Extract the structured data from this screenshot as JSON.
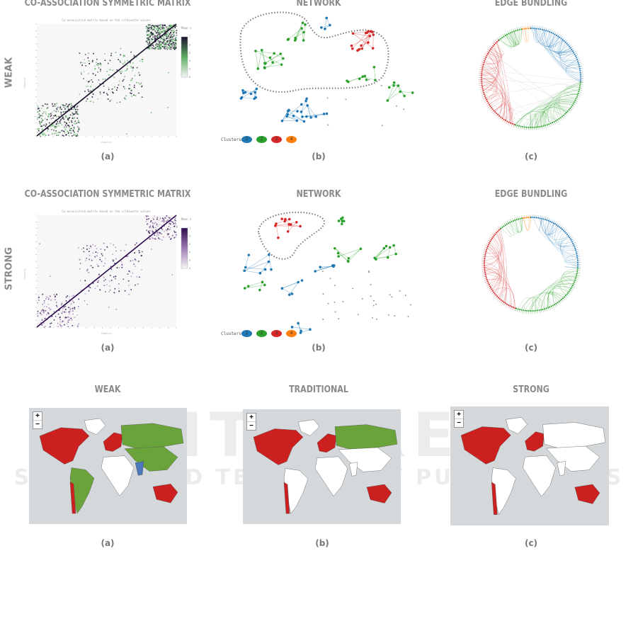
{
  "row_labels": [
    "WEAK",
    "STRONG"
  ],
  "rows": [
    {
      "titles": [
        "CO-ASSOCIATION SYMMETRIC MATRIX",
        "NETWORK",
        "EDGE BUNDLING"
      ],
      "captions": [
        "(a)",
        "(b)",
        "(c)"
      ],
      "matrix": {
        "title": "Co-association matrix based on the silhouette values",
        "xlabel": "Country",
        "ylabel": "Country",
        "colorbar_label": "Mean silhouette",
        "colorbar_ticks": [
          "0",
          "0.2",
          "0.4",
          "0.6",
          "0.8",
          "1"
        ],
        "colormap": [
          "#f7f7f7",
          "#5aae61",
          "#1b0f2e"
        ]
      },
      "network": {
        "legend_label": "Clusters",
        "clusters": [
          "1",
          "2",
          "3",
          "4"
        ]
      }
    },
    {
      "titles": [
        "CO-ASSOCIATION SYMMETRIC MATRIX",
        "NETWORK",
        "EDGE BUNDLING"
      ],
      "captions": [
        "(a)",
        "(b)",
        "(c)"
      ],
      "matrix": {
        "title": "Co-association matrix based on the silhouette values",
        "xlabel": "Country",
        "ylabel": "Country",
        "colorbar_label": "Mean silhouette",
        "colorbar_ticks": [
          "0",
          "0.2",
          "0.4",
          "0.6",
          "0.8",
          "1"
        ],
        "colormap": [
          "#f7f7f7",
          "#9e7bb5",
          "#2d0a4e"
        ]
      },
      "network": {
        "legend_label": "Clusters",
        "clusters": [
          "1",
          "2",
          "3",
          "4"
        ]
      }
    }
  ],
  "cluster_colors": [
    "#1f77b4",
    "#2ca02c",
    "#d62728",
    "#ff7f0e"
  ],
  "maps": [
    {
      "title": "WEAK",
      "caption": "(a)",
      "zoom_in": "+",
      "zoom_out": "−",
      "regions": {
        "na": "#cc1f1f",
        "gl": "#ffffff",
        "sa": "#6aa33a",
        "chile": "#cc1f1f",
        "eu": "#cc1f1f",
        "ru": "#6aa33a",
        "asia": "#6aa33a",
        "af": "#ffffff",
        "india": "#4a78b8",
        "au": "#cc1f1f"
      }
    },
    {
      "title": "TRADITIONAL",
      "caption": "(b)",
      "zoom_in": "+",
      "zoom_out": "−",
      "regions": {
        "na": "#cc1f1f",
        "gl": "#ffffff",
        "sa": "#ffffff",
        "chile": "#cc1f1f",
        "eu": "#cc1f1f",
        "ru": "#6aa33a",
        "asia": "#ffffff",
        "af": "#ffffff",
        "india": "#ffffff",
        "au": "#cc1f1f"
      }
    },
    {
      "title": "STRONG",
      "caption": "(c)",
      "zoom_in": "+",
      "zoom_out": "−",
      "regions": {
        "na": "#cc1f1f",
        "gl": "#ffffff",
        "sa": "#ffffff",
        "chile": "#cc1f1f",
        "eu": "#cc1f1f",
        "ru": "#ffffff",
        "asia": "#ffffff",
        "af": "#ffffff",
        "india": "#ffffff",
        "au": "#cc1f1f"
      }
    }
  ],
  "watermark": {
    "line1": "SCITEPRESS",
    "line2": "SCIENCE AND TECHNOLOGY PUBLICATIONS"
  }
}
